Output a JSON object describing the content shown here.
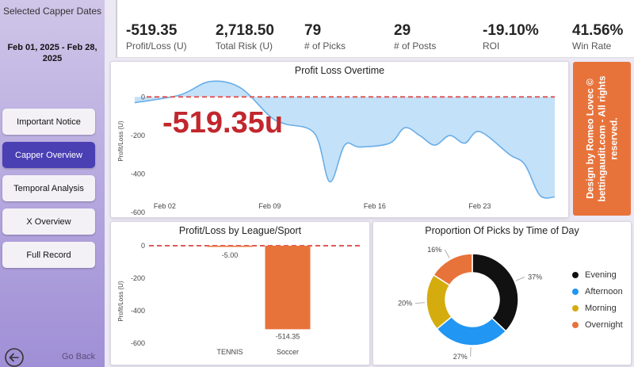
{
  "sidebar": {
    "title": "Selected Capper Dates",
    "date_range": "Feb 01, 2025 - Feb 28, 2025",
    "nav": [
      {
        "label": "Important Notice",
        "active": false
      },
      {
        "label": "Capper Overview",
        "active": true
      },
      {
        "label": "Temporal Analysis",
        "active": false
      },
      {
        "label": "X Overview",
        "active": false
      },
      {
        "label": "Full Record",
        "active": false
      }
    ],
    "go_back_label": "Go Back"
  },
  "kpis": [
    {
      "value": "-519.35",
      "label": "Profit/Loss (U)"
    },
    {
      "value": "2,718.50",
      "label": "Total Risk (U)"
    },
    {
      "value": "79",
      "label": "# of Picks"
    },
    {
      "value": "29",
      "label": "# of Posts"
    },
    {
      "value": "-19.10%",
      "label": "ROI"
    },
    {
      "value": "41.56%",
      "label": "Win Rate"
    }
  ],
  "profit_chart": {
    "title": "Profit Loss Overtime",
    "ylabel": "Profit/Loss (U)",
    "big_value": "-519.35u",
    "y_ticks": [
      "0",
      "-200",
      "-400",
      "-600"
    ],
    "x_ticks": [
      "Feb 02",
      "Feb 09",
      "Feb 16",
      "Feb 23"
    ]
  },
  "credit": {
    "line1": "Design by Romeo Lovec ©",
    "line2": "bettingaudit.com - All rights reserved."
  },
  "league_chart": {
    "title": "Profit/Loss by League/Sport",
    "ylabel": "Profit/Loss (U)",
    "y_ticks": [
      "0",
      "-200",
      "-400",
      "-600"
    ],
    "categories": [
      "TENNIS",
      "Soccer"
    ],
    "value_labels": [
      "-5.00",
      "-514.35"
    ]
  },
  "time_chart": {
    "title": "Proportion Of Picks by Time of Day",
    "slice_labels": [
      "37%",
      "27%",
      "20%",
      "16%"
    ],
    "legend": [
      "Evening",
      "Afternoon",
      "Morning",
      "Overnight"
    ]
  },
  "colors": {
    "accent": "#4a3fb3",
    "area_fill": "#b9dcf7",
    "line": "#6aaee8",
    "zero_line": "#e05a5a",
    "bar": "#e8733a",
    "big_value": "#c1272d",
    "evening": "#111111",
    "afternoon": "#2196f3",
    "morning": "#d4ac0d",
    "overnight": "#e8733a"
  },
  "chart_data": [
    {
      "type": "area",
      "title": "Profit Loss Overtime",
      "ylabel": "Profit/Loss (U)",
      "ylim": [
        -620,
        100
      ],
      "x_ticks": [
        "Feb 02",
        "Feb 09",
        "Feb 16",
        "Feb 23"
      ],
      "x": [
        "2025-01-31",
        "2025-02-03",
        "2025-02-05",
        "2025-02-07",
        "2025-02-09",
        "2025-02-10",
        "2025-02-12",
        "2025-02-13",
        "2025-02-14",
        "2025-02-15",
        "2025-02-17",
        "2025-02-18",
        "2025-02-19",
        "2025-02-20",
        "2025-02-21",
        "2025-02-22",
        "2025-02-23",
        "2025-02-25",
        "2025-02-26",
        "2025-02-27",
        "2025-02-28"
      ],
      "values": [
        -30,
        10,
        80,
        50,
        -100,
        -140,
        -190,
        -440,
        -250,
        -260,
        -240,
        -160,
        -200,
        -250,
        -200,
        -240,
        -180,
        -300,
        -350,
        -510,
        -519.35
      ],
      "annotation": "-519.35u"
    },
    {
      "type": "bar",
      "title": "Profit/Loss by League/Sport",
      "ylabel": "Profit/Loss (U)",
      "categories": [
        "TENNIS",
        "Soccer"
      ],
      "values": [
        -5.0,
        -514.35
      ],
      "ylim": [
        -620,
        0
      ]
    },
    {
      "type": "pie",
      "title": "Proportion Of Picks by Time of Day",
      "categories": [
        "Evening",
        "Afternoon",
        "Morning",
        "Overnight"
      ],
      "values": [
        37,
        27,
        20,
        16
      ],
      "legend": "right"
    }
  ]
}
